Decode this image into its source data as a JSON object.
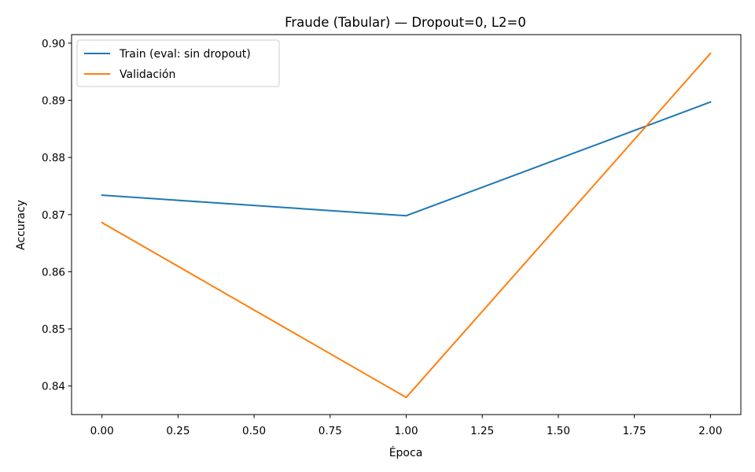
{
  "chart_data": {
    "type": "line",
    "title": "Fraude (Tabular) — Dropout=0, L2=0",
    "xlabel": "Época",
    "ylabel": "Accuracy",
    "x": [
      0,
      1,
      2
    ],
    "series": [
      {
        "name": "Train (eval: sin dropout)",
        "color": "#1f77b4",
        "values": [
          0.8734,
          0.8698,
          0.8897
        ]
      },
      {
        "name": "Validación",
        "color": "#ff7f0e",
        "values": [
          0.8686,
          0.838,
          0.8982
        ]
      }
    ],
    "xlim": [
      -0.1,
      2.1
    ],
    "ylim": [
      0.835,
      0.9015
    ],
    "xticks": [
      0.0,
      0.25,
      0.5,
      0.75,
      1.0,
      1.25,
      1.5,
      1.75,
      2.0
    ],
    "xtick_labels": [
      "0.00",
      "0.25",
      "0.50",
      "0.75",
      "1.00",
      "1.25",
      "1.50",
      "1.75",
      "2.00"
    ],
    "yticks": [
      0.84,
      0.85,
      0.86,
      0.87,
      0.88,
      0.89,
      0.9
    ],
    "ytick_labels": [
      "0.84",
      "0.85",
      "0.86",
      "0.87",
      "0.88",
      "0.89",
      "0.90"
    ],
    "grid": false,
    "legend_position": "top-left"
  }
}
